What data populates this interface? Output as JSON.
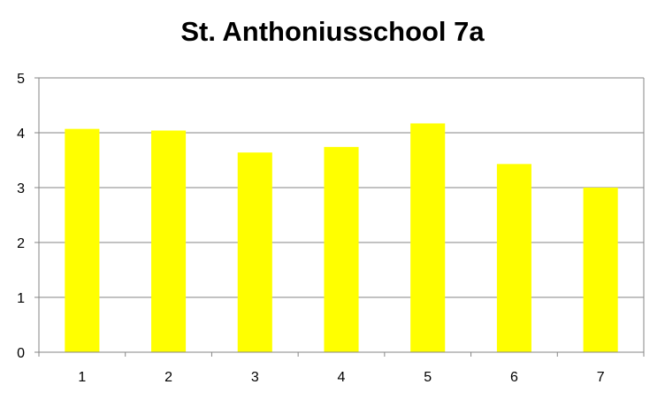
{
  "chart_data": {
    "type": "bar",
    "title": "St. Anthoniusschool 7a",
    "categories": [
      "1",
      "2",
      "3",
      "4",
      "5",
      "6",
      "7"
    ],
    "values": [
      4.07,
      4.04,
      3.64,
      3.74,
      4.17,
      3.43,
      3.0
    ],
    "ylim": [
      0,
      5
    ],
    "yticks": [
      "0",
      "1",
      "2",
      "3",
      "4",
      "5"
    ],
    "grid": true,
    "legend": "none",
    "colors": {
      "bar": "#FFFF00",
      "grid": "#868686",
      "axis": "#868686",
      "plot_border": "#868686"
    }
  }
}
